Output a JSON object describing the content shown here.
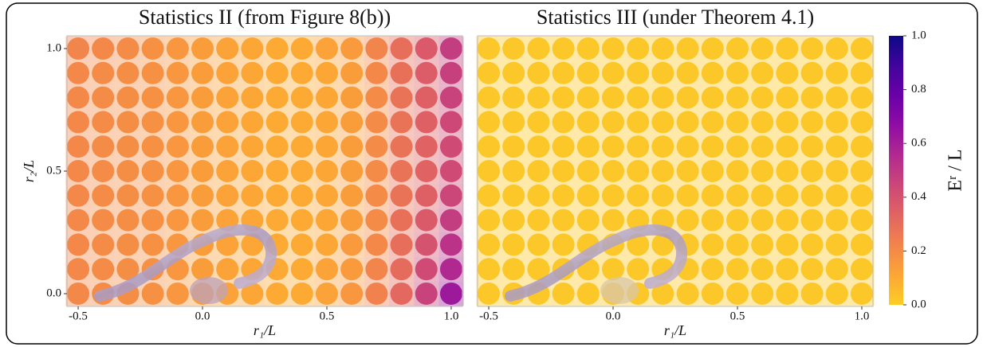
{
  "chart_data": [
    {
      "type": "heatmap",
      "title": "Statistics II (from Figure 8(b))",
      "x": [
        -0.5,
        -0.4,
        -0.3,
        -0.2,
        -0.1,
        0.0,
        0.1,
        0.2,
        0.3,
        0.4,
        0.5,
        0.6,
        0.7,
        0.8,
        0.9,
        1.0
      ],
      "y": [
        0.0,
        0.1,
        0.2,
        0.3,
        0.4,
        0.5,
        0.6,
        0.7,
        0.8,
        0.9,
        1.0
      ],
      "z": [
        [
          0.21,
          0.2,
          0.19,
          0.18,
          0.16,
          0.14,
          0.12,
          0.11,
          0.1,
          0.1,
          0.12,
          0.16,
          0.23,
          0.32,
          0.46,
          0.62
        ],
        [
          0.21,
          0.2,
          0.19,
          0.18,
          0.16,
          0.14,
          0.12,
          0.11,
          0.1,
          0.1,
          0.12,
          0.15,
          0.22,
          0.31,
          0.43,
          0.56
        ],
        [
          0.21,
          0.2,
          0.19,
          0.18,
          0.16,
          0.14,
          0.12,
          0.11,
          0.1,
          0.1,
          0.11,
          0.15,
          0.21,
          0.3,
          0.4,
          0.52
        ],
        [
          0.21,
          0.2,
          0.19,
          0.18,
          0.16,
          0.14,
          0.12,
          0.11,
          0.1,
          0.1,
          0.11,
          0.14,
          0.2,
          0.29,
          0.37,
          0.48
        ],
        [
          0.21,
          0.2,
          0.19,
          0.18,
          0.16,
          0.14,
          0.12,
          0.11,
          0.1,
          0.1,
          0.11,
          0.14,
          0.2,
          0.28,
          0.35,
          0.45
        ],
        [
          0.21,
          0.2,
          0.19,
          0.18,
          0.16,
          0.14,
          0.12,
          0.11,
          0.1,
          0.1,
          0.11,
          0.14,
          0.2,
          0.28,
          0.34,
          0.43
        ],
        [
          0.21,
          0.2,
          0.19,
          0.18,
          0.16,
          0.14,
          0.12,
          0.11,
          0.1,
          0.1,
          0.11,
          0.14,
          0.2,
          0.28,
          0.34,
          0.43
        ],
        [
          0.21,
          0.2,
          0.19,
          0.18,
          0.16,
          0.14,
          0.12,
          0.11,
          0.1,
          0.1,
          0.11,
          0.14,
          0.2,
          0.28,
          0.35,
          0.44
        ],
        [
          0.21,
          0.2,
          0.19,
          0.18,
          0.16,
          0.14,
          0.12,
          0.11,
          0.1,
          0.1,
          0.11,
          0.14,
          0.2,
          0.28,
          0.35,
          0.46
        ],
        [
          0.21,
          0.2,
          0.19,
          0.18,
          0.16,
          0.14,
          0.12,
          0.11,
          0.1,
          0.1,
          0.11,
          0.14,
          0.21,
          0.29,
          0.36,
          0.47
        ],
        [
          0.22,
          0.21,
          0.2,
          0.18,
          0.16,
          0.14,
          0.12,
          0.11,
          0.1,
          0.1,
          0.12,
          0.15,
          0.22,
          0.3,
          0.37,
          0.48
        ]
      ],
      "xlim": [
        -0.545,
        1.045
      ],
      "ylim": [
        -0.052,
        1.052
      ],
      "xticks": [
        {
          "value": -0.5,
          "label": "-0.5"
        },
        {
          "value": 0,
          "label": "0.0"
        },
        0.5,
        {
          "value": 1,
          "label": "1.0"
        }
      ],
      "yticks": [
        {
          "value": 0,
          "label": "0.0"
        },
        0.5,
        {
          "value": 1,
          "label": "1.0"
        }
      ],
      "xlabel": "r₁/L",
      "ylabel": "r₂/L"
    },
    {
      "type": "heatmap",
      "title": "Statistics III (under Theorem 4.1)",
      "x": [
        -0.5,
        -0.4,
        -0.3,
        -0.2,
        -0.1,
        0.0,
        0.1,
        0.2,
        0.3,
        0.4,
        0.5,
        0.6,
        0.7,
        0.8,
        0.9,
        1.0
      ],
      "y": [
        0.0,
        0.1,
        0.2,
        0.3,
        0.4,
        0.5,
        0.6,
        0.7,
        0.8,
        0.9,
        1.0
      ],
      "z": [
        [
          0.02,
          0.02,
          0.02,
          0.02,
          0.02,
          0.02,
          0.02,
          0.02,
          0.02,
          0.02,
          0.02,
          0.02,
          0.02,
          0.02,
          0.02,
          0.02
        ],
        [
          0.02,
          0.02,
          0.02,
          0.02,
          0.02,
          0.02,
          0.02,
          0.02,
          0.02,
          0.02,
          0.02,
          0.02,
          0.02,
          0.02,
          0.02,
          0.02
        ],
        [
          0.02,
          0.02,
          0.02,
          0.02,
          0.02,
          0.02,
          0.02,
          0.02,
          0.02,
          0.02,
          0.02,
          0.02,
          0.02,
          0.02,
          0.02,
          0.02
        ],
        [
          0.02,
          0.02,
          0.02,
          0.02,
          0.02,
          0.02,
          0.02,
          0.02,
          0.02,
          0.02,
          0.02,
          0.02,
          0.02,
          0.02,
          0.02,
          0.02
        ],
        [
          0.02,
          0.02,
          0.02,
          0.02,
          0.02,
          0.02,
          0.02,
          0.02,
          0.02,
          0.02,
          0.02,
          0.02,
          0.02,
          0.02,
          0.02,
          0.02
        ],
        [
          0.02,
          0.02,
          0.02,
          0.02,
          0.02,
          0.02,
          0.02,
          0.02,
          0.02,
          0.02,
          0.02,
          0.02,
          0.02,
          0.02,
          0.02,
          0.02
        ],
        [
          0.02,
          0.02,
          0.02,
          0.02,
          0.02,
          0.02,
          0.02,
          0.02,
          0.02,
          0.02,
          0.02,
          0.02,
          0.02,
          0.02,
          0.02,
          0.02
        ],
        [
          0.02,
          0.02,
          0.02,
          0.02,
          0.02,
          0.02,
          0.02,
          0.02,
          0.02,
          0.02,
          0.02,
          0.02,
          0.02,
          0.02,
          0.02,
          0.02
        ],
        [
          0.02,
          0.02,
          0.02,
          0.02,
          0.02,
          0.02,
          0.02,
          0.02,
          0.02,
          0.02,
          0.02,
          0.02,
          0.02,
          0.02,
          0.02,
          0.02
        ],
        [
          0.02,
          0.02,
          0.02,
          0.02,
          0.02,
          0.02,
          0.02,
          0.02,
          0.02,
          0.02,
          0.02,
          0.02,
          0.02,
          0.02,
          0.02,
          0.02
        ],
        [
          0.02,
          0.02,
          0.02,
          0.02,
          0.02,
          0.02,
          0.02,
          0.02,
          0.02,
          0.02,
          0.02,
          0.02,
          0.02,
          0.02,
          0.02,
          0.02
        ]
      ],
      "xlim": [
        -0.545,
        1.045
      ],
      "ylim": [
        -0.052,
        1.052
      ],
      "xticks": [
        {
          "value": -0.5,
          "label": "-0.5"
        },
        {
          "value": 0,
          "label": "0.0"
        },
        0.5,
        {
          "value": 1,
          "label": "1.0"
        }
      ],
      "xlabel": "r₁/L"
    }
  ],
  "colorbar": {
    "label": "Eʳ / L",
    "lim": [
      0,
      1
    ],
    "ticks": [
      {
        "value": 0,
        "label": "0.0"
      },
      0.2,
      0.4,
      0.6,
      0.8,
      {
        "value": 1,
        "label": "1.0"
      }
    ],
    "colors": [
      "#fcce25",
      "#fca636",
      "#f2844b",
      "#e16462",
      "#cc4778",
      "#b12a90",
      "#8f0da4",
      "#6a00a8",
      "#41049d",
      "#0d0887"
    ]
  }
}
